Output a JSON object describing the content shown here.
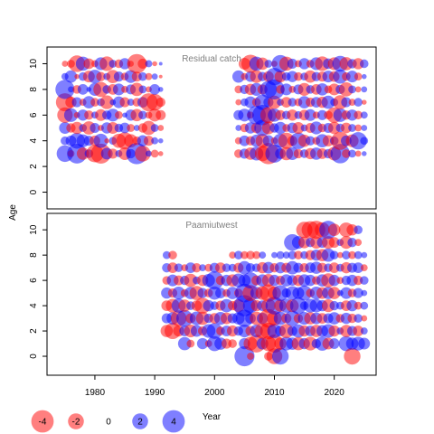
{
  "ylabel": "Age",
  "xlabel": "Year",
  "colors": {
    "positive": "#0000ff",
    "negative": "#ff0000",
    "frame": "#000000",
    "panel_title": "#7f7f7f"
  },
  "legend": {
    "labels": [
      "-4",
      "-2",
      "0",
      "2",
      "4"
    ],
    "values": [
      -4,
      -2,
      0,
      2,
      4
    ]
  },
  "chart_data": [
    {
      "type": "scatter",
      "encoding": "bubble residual plot: radius ~ sqrt(|residual|), blue = positive, red = negative",
      "title": "Residual catch",
      "xlim": [
        1972,
        2027
      ],
      "ylim": [
        -1.3,
        11.3
      ],
      "x_ticks": [
        1980,
        1990,
        2000,
        2010,
        2020
      ],
      "y_ticks": [
        0,
        2,
        4,
        6,
        8,
        10
      ],
      "grid": false,
      "years": [
        1975,
        1976,
        1977,
        1978,
        1979,
        1980,
        1981,
        1982,
        1983,
        1984,
        1985,
        1986,
        1987,
        1988,
        1989,
        1990,
        1991,
        2004,
        2005,
        2006,
        2007,
        2008,
        2009,
        2010,
        2011,
        2012,
        2013,
        2014,
        2015,
        2016,
        2017,
        2018,
        2019,
        2020,
        2021,
        2022,
        2023,
        2024,
        2025
      ],
      "ages": [
        3,
        4,
        5,
        6,
        7,
        8,
        9,
        10
      ],
      "residuals_by_year": {
        "1975": [
          2.2,
          0.6,
          1.1,
          -1.9,
          -2.6,
          2.9,
          0.4,
          -0.3
        ],
        "1976": [
          -0.4,
          0.9,
          -0.7,
          1.5,
          -1.0,
          0.3,
          1.2,
          -0.5
        ],
        "1977": [
          3.1,
          2.0,
          -1.2,
          -0.3,
          0.8,
          -0.6,
          -0.2,
          -2.2
        ],
        "1978": [
          -1.2,
          1.3,
          0.5,
          1.0,
          -0.4,
          0.9,
          0.6,
          1.6
        ],
        "1979": [
          0.6,
          0.8,
          -1.4,
          -0.7,
          1.2,
          0.2,
          -1.1,
          -0.9
        ],
        "1980": [
          -2.4,
          -0.9,
          0.8,
          0.4,
          -0.6,
          1.3,
          1.5,
          -0.4
        ],
        "1981": [
          -3.2,
          1.6,
          -0.3,
          -1.1,
          0.5,
          -1.8,
          -0.7,
          1.3
        ],
        "1982": [
          1.1,
          -0.2,
          1.0,
          0.7,
          -1.5,
          0.6,
          0.4,
          -1.7
        ],
        "1983": [
          -0.8,
          0.5,
          -1.1,
          1.3,
          0.3,
          -0.9,
          -1.4,
          0.5
        ],
        "1984": [
          0.4,
          -1.6,
          0.6,
          -0.5,
          1.1,
          1.1,
          0.8,
          -0.6
        ],
        "1985": [
          -1.3,
          -2.3,
          0.9,
          0.2,
          -0.8,
          -0.4,
          -0.5,
          1.0
        ],
        "1986": [
          0.7,
          -1.4,
          -0.5,
          1.0,
          0.4,
          0.8,
          1.3,
          -0.3
        ],
        "1987": [
          3.6,
          -0.6,
          0.3,
          -1.2,
          -0.6,
          -1.4,
          -0.8,
          -3.0
        ],
        "1988": [
          -2.0,
          1.0,
          -0.7,
          0.6,
          0.9,
          0.5,
          0.6,
          -0.8
        ],
        "1989": [
          0.3,
          -0.8,
          -1.6,
          -0.4,
          -2.6,
          -0.3,
          -0.4,
          0.4
        ],
        "1990": [
          -0.5,
          0.4,
          0.5,
          -1.3,
          -2.2,
          0.9,
          0.3,
          -0.2
        ],
        "1991": [
          -0.2,
          0.2,
          -0.3,
          -0.8,
          -0.7,
          0.2,
          -0.1,
          0.1
        ],
        "2004": [
          -0.6,
          -0.4,
          0.3,
          0.8,
          -0.3,
          -0.5,
          1.2,
          0.0
        ],
        "2005": [
          0.8,
          0.9,
          -0.6,
          1.3,
          0.5,
          0.7,
          -0.4,
          -1.1
        ],
        "2006": [
          -1.2,
          -0.7,
          1.0,
          -0.4,
          1.1,
          -1.0,
          0.9,
          -2.6
        ],
        "2007": [
          1.5,
          1.2,
          -0.9,
          2.8,
          -0.6,
          1.3,
          -1.3,
          1.6
        ],
        "2008": [
          -1.8,
          -1.5,
          2.1,
          3.3,
          1.9,
          -0.8,
          0.7,
          -1.2
        ],
        "2009": [
          -3.6,
          1.0,
          -1.3,
          -2.1,
          0.8,
          2.3,
          -0.9,
          0.5
        ],
        "2010": [
          2.6,
          -0.4,
          0.7,
          1.4,
          -1.4,
          3.2,
          2.4,
          -0.3
        ],
        "2011": [
          0.9,
          1.6,
          1.2,
          -0.8,
          0.4,
          -0.6,
          -1.1,
          2.4
        ],
        "2012": [
          -1.4,
          -2.1,
          -0.5,
          0.6,
          -0.9,
          1.1,
          0.6,
          -1.6
        ],
        "2013": [
          1.3,
          -0.8,
          0.9,
          -1.0,
          0.6,
          -0.4,
          1.0,
          0.8
        ],
        "2014": [
          -0.7,
          2.2,
          -1.1,
          0.5,
          -0.5,
          0.8,
          -0.6,
          -0.4
        ],
        "2015": [
          0.6,
          -1.2,
          0.4,
          -0.9,
          1.2,
          -1.3,
          0.5,
          1.0
        ],
        "2016": [
          -1.0,
          0.7,
          -0.8,
          1.1,
          -0.7,
          0.6,
          -1.2,
          -0.5
        ],
        "2017": [
          1.2,
          -0.5,
          1.3,
          -0.4,
          0.9,
          -0.9,
          0.7,
          1.3
        ],
        "2018": [
          -0.9,
          1.4,
          -0.6,
          0.8,
          -1.0,
          1.2,
          -0.8,
          -1.7
        ],
        "2019": [
          0.7,
          -1.0,
          0.8,
          -0.6,
          1.4,
          -0.5,
          1.1,
          0.9
        ],
        "2020": [
          -1.5,
          0.6,
          -1.2,
          -1.9,
          0.5,
          -1.1,
          -0.9,
          -1.3
        ],
        "2021": [
          3.0,
          -2.6,
          0.6,
          1.5,
          -1.6,
          0.7,
          1.6,
          2.0
        ],
        "2022": [
          -0.6,
          0.9,
          -0.9,
          -0.7,
          0.8,
          -1.6,
          -0.6,
          -1.4
        ],
        "2023": [
          0.5,
          -1.3,
          0.5,
          1.0,
          -0.4,
          0.5,
          1.1,
          0.7
        ],
        "2024": [
          -0.3,
          2.4,
          -0.4,
          -0.6,
          0.6,
          -0.3,
          -0.5,
          -1.0
        ],
        "2025": [
          0.2,
          0.5,
          0.3,
          0.4,
          -0.2,
          0.3,
          0.2,
          0.6
        ]
      }
    },
    {
      "type": "scatter",
      "encoding": "bubble residual plot: radius ~ sqrt(|residual|), blue = positive, red = negative",
      "title": "Paamiutwest",
      "xlim": [
        1972,
        2027
      ],
      "ylim": [
        -1.5,
        11.3
      ],
      "x_ticks": [
        1980,
        1990,
        2000,
        2010,
        2020
      ],
      "y_ticks": [
        0,
        2,
        4,
        6,
        8,
        10
      ],
      "grid": false,
      "years": [
        1992,
        1993,
        1994,
        1995,
        1996,
        1997,
        1998,
        1999,
        2000,
        2001,
        2002,
        2003,
        2004,
        2005,
        2006,
        2007,
        2008,
        2009,
        2010,
        2011,
        2012,
        2013,
        2014,
        2015,
        2016,
        2017,
        2018,
        2019,
        2020,
        2021,
        2022,
        2023,
        2024,
        2025
      ],
      "ages": [
        0,
        1,
        2,
        3,
        4,
        5,
        6,
        7,
        8,
        9,
        10
      ],
      "residuals_by_year": {
        "1992": [
          null,
          null,
          -1.2,
          0.8,
          -0.9,
          1.0,
          -0.6,
          0.7,
          0.5,
          null,
          null
        ],
        "1993": [
          null,
          null,
          -2.1,
          1.2,
          -1.5,
          -0.7,
          1.1,
          -0.9,
          -0.6,
          null,
          null
        ],
        "1994": [
          null,
          null,
          -1.0,
          -2.0,
          1.6,
          1.3,
          -0.8,
          0.6,
          null,
          null,
          null
        ],
        "1995": [
          null,
          1.4,
          0.9,
          2.2,
          -1.2,
          -0.5,
          0.7,
          -0.4,
          null,
          null,
          null
        ],
        "1996": [
          null,
          -0.5,
          -1.3,
          -0.8,
          0.6,
          1.2,
          -1.4,
          0.9,
          null,
          null,
          null
        ],
        "1997": [
          null,
          null,
          1.1,
          1.5,
          -0.9,
          -1.6,
          0.5,
          -0.7,
          null,
          null,
          null
        ],
        "1998": [
          null,
          1.0,
          -0.7,
          -1.4,
          -2.0,
          0.8,
          -1.0,
          0.4,
          null,
          null,
          null
        ],
        "1999": [
          null,
          -0.4,
          1.5,
          0.7,
          1.0,
          -0.6,
          1.3,
          -0.5,
          null,
          null,
          null
        ],
        "2000": [
          null,
          1.8,
          2.0,
          -0.9,
          0.6,
          1.4,
          2.6,
          0.8,
          null,
          null,
          null
        ],
        "2001": [
          null,
          1.2,
          -0.6,
          1.3,
          -0.8,
          0.9,
          -0.7,
          -0.9,
          null,
          null,
          null
        ],
        "2002": [
          null,
          -0.8,
          0.9,
          -1.1,
          1.4,
          -0.5,
          1.0,
          0.6,
          null,
          null,
          null
        ],
        "2003": [
          null,
          -0.6,
          -1.0,
          0.8,
          -0.7,
          1.2,
          -1.2,
          0.5,
          -0.4,
          null,
          null
        ],
        "2004": [
          null,
          null,
          0.7,
          1.2,
          -1.3,
          -0.6,
          1.5,
          -0.8,
          0.6,
          null,
          null
        ],
        "2005": [
          3.2,
          1.0,
          1.3,
          2.4,
          3.6,
          2.8,
          1.2,
          1.4,
          -0.5,
          null,
          null
        ],
        "2006": [
          -0.4,
          -1.5,
          -0.8,
          0.9,
          1.8,
          -2.0,
          2.1,
          0.7,
          -0.6,
          null,
          null
        ],
        "2007": [
          null,
          -2.5,
          1.3,
          -1.4,
          -1.0,
          1.2,
          -0.8,
          0.6,
          -0.5,
          null,
          null
        ],
        "2008": [
          null,
          1.1,
          -1.9,
          1.0,
          0.9,
          -1.5,
          1.2,
          -1.0,
          0.4,
          null,
          null
        ],
        "2009": [
          -0.6,
          -1.8,
          -2.2,
          -2.8,
          -1.6,
          -2.4,
          -1.3,
          1.1,
          null,
          null,
          null
        ],
        "2010": [
          -2.0,
          -2.6,
          1.6,
          -1.7,
          2.5,
          -1.4,
          1.0,
          -0.7,
          0.3,
          null,
          null
        ],
        "2011": [
          2.2,
          -1.2,
          0.9,
          1.4,
          -1.2,
          2.0,
          -0.7,
          1.0,
          0.5,
          null,
          null
        ],
        "2012": [
          null,
          1.5,
          -1.6,
          -0.8,
          1.6,
          0.7,
          1.2,
          -0.8,
          0.4,
          null,
          null
        ],
        "2013": [
          null,
          1.2,
          0.8,
          1.9,
          -1.3,
          1.5,
          0.9,
          1.4,
          0.6,
          2.2,
          null
        ],
        "2014": [
          null,
          -1.4,
          1.4,
          -0.7,
          2.2,
          1.1,
          -1.0,
          0.8,
          -0.6,
          1.3,
          null
        ],
        "2015": [
          null,
          1.0,
          -1.0,
          1.3,
          0.6,
          1.8,
          1.2,
          -0.7,
          0.5,
          -1.1,
          -2.1
        ],
        "2016": [
          null,
          -1.5,
          0.9,
          -1.2,
          1.5,
          -0.6,
          1.0,
          0.9,
          -0.8,
          0.7,
          -2.4
        ],
        "2017": [
          null,
          0.7,
          -1.2,
          1.1,
          1.4,
          1.3,
          -0.6,
          1.2,
          1.0,
          -1.2,
          -2.6
        ],
        "2018": [
          null,
          1.6,
          1.1,
          -0.9,
          1.0,
          -1.1,
          1.2,
          -0.8,
          -1.2,
          0.9,
          -1.8
        ],
        "2019": [
          null,
          -1.1,
          1.5,
          0.8,
          -1.3,
          1.2,
          -1.6,
          0.6,
          1.4,
          -1.3,
          2.6
        ],
        "2020": [
          null,
          0.9,
          -1.0,
          1.2,
          0.7,
          -1.2,
          1.0,
          -0.9,
          0.6,
          -0.9,
          -1.2
        ],
        "2021": [
          null,
          null,
          0.4,
          -0.6,
          0.5,
          0.3,
          -0.4,
          0.5,
          -0.3,
          0.4,
          null
        ],
        "2022": [
          null,
          1.8,
          -1.2,
          1.0,
          -0.9,
          1.1,
          0.7,
          -1.0,
          0.6,
          -1.3,
          -1.7
        ],
        "2023": [
          -2.2,
          1.2,
          0.8,
          -0.7,
          1.0,
          -0.6,
          1.0,
          0.8,
          -0.5,
          0.7,
          -1.0
        ],
        "2024": [
          null,
          1.5,
          -0.9,
          0.6,
          -0.5,
          0.8,
          -0.7,
          0.9,
          0.5,
          -0.4,
          0.6
        ],
        "2025": [
          null,
          1.1,
          0.4,
          -0.3,
          0.5,
          0.3,
          0.6,
          -0.4,
          0.3,
          null,
          null
        ]
      }
    }
  ]
}
